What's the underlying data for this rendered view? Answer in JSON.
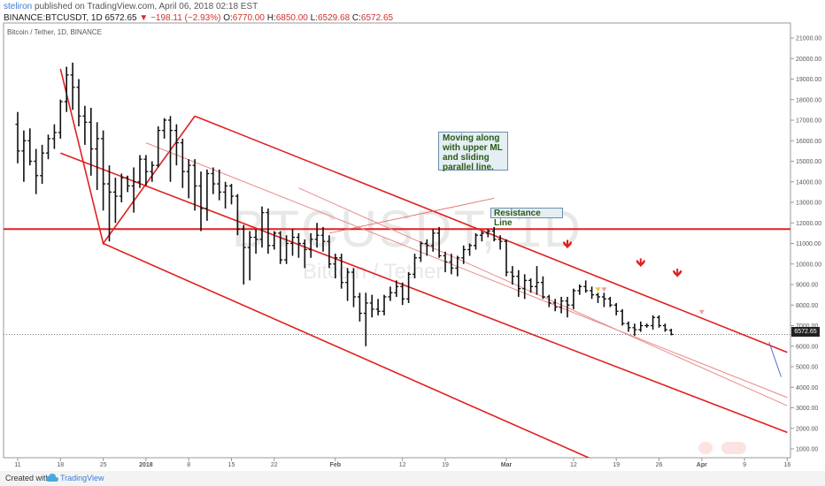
{
  "header": {
    "author": "steliron",
    "published_text": "published on TradingView.com, April 06, 2018 02:18 EST",
    "symbol": "BINANCE:BTCUSDT, 1D",
    "last": "6572.65",
    "change": "−198.11 (−2.93%)",
    "open_label": "O:",
    "open": "6770.00",
    "high_label": "H:",
    "high": "6850.00",
    "low_label": "L:",
    "low": "6529.68",
    "close_label": "C:",
    "close": "6572.65"
  },
  "pane": {
    "title": "Bitcoin / Tether, 1D, BINANCE",
    "watermark_symbol": "BTCUSDT, 1D",
    "watermark_name": "Bitcoin / Tether"
  },
  "annotations": {
    "upper_ml_note": [
      "Moving along",
      "with upper ML",
      "and sliding",
      "parallel line."
    ],
    "resistance_note": "Resistance Line"
  },
  "footer": {
    "created_with": "Created with",
    "brand": "TradingView"
  },
  "chart_data": {
    "type": "bar",
    "price_type": "ohlc",
    "y_axis_position": "right",
    "ylim": [
      500,
      21500
    ],
    "y_ticks": [
      "1000.00",
      "2000.00",
      "3000.00",
      "4000.00",
      "5000.00",
      "6000.00",
      "7000.00",
      "8000.00",
      "9000.00",
      "10000.00",
      "11000.00",
      "12000.00",
      "13000.00",
      "14000.00",
      "15000.00",
      "16000.00",
      "17000.00",
      "18000.00",
      "19000.00",
      "20000.00",
      "21000.00"
    ],
    "x_tick_labels": [
      "11",
      "18",
      "25",
      "2018",
      "8",
      "15",
      "22",
      "Feb",
      "12",
      "19",
      "Mar",
      "12",
      "19",
      "26",
      "Apr",
      "9",
      "16"
    ],
    "x_ticks_day": [
      0,
      7,
      14,
      21,
      28,
      35,
      42,
      52,
      63,
      70,
      80,
      91,
      98,
      105,
      112,
      119,
      126
    ],
    "current_price": "6572.65",
    "series": [
      {
        "values": [
          [
            16800,
            17400,
            14900,
            15500
          ],
          [
            15500,
            16500,
            14000,
            16000
          ],
          [
            16000,
            16600,
            14800,
            15000
          ],
          [
            15000,
            15600,
            13400,
            14300
          ],
          [
            14300,
            15800,
            13900,
            15400
          ],
          [
            15400,
            16300,
            15100,
            16100
          ],
          [
            16100,
            16800,
            15600,
            16400
          ],
          [
            16400,
            18000,
            16100,
            17900
          ],
          [
            17900,
            19600,
            17400,
            19200
          ],
          [
            19200,
            19800,
            17500,
            18600
          ],
          [
            18600,
            19000,
            16700,
            17200
          ],
          [
            17200,
            17700,
            15800,
            16900
          ],
          [
            16900,
            17600,
            14300,
            15600
          ],
          [
            15600,
            16900,
            13600,
            16100
          ],
          [
            16100,
            16500,
            12600,
            13900
          ],
          [
            13900,
            14800,
            11100,
            13500
          ],
          [
            13500,
            14200,
            12000,
            13300
          ],
          [
            13300,
            14400,
            13000,
            14200
          ],
          [
            14200,
            14300,
            13500,
            13800
          ],
          [
            13800,
            14700,
            12500,
            14000
          ],
          [
            14000,
            15300,
            13700,
            15100
          ],
          [
            15100,
            15300,
            13800,
            14500
          ],
          [
            14500,
            15000,
            14000,
            14800
          ],
          [
            14800,
            16700,
            14700,
            16500
          ],
          [
            16500,
            17100,
            16100,
            17000
          ],
          [
            17000,
            17200,
            14000,
            16500
          ],
          [
            16500,
            16800,
            14800,
            15900
          ],
          [
            15900,
            16100,
            13700,
            14500
          ],
          [
            14500,
            15100,
            13200,
            14800
          ],
          [
            14800,
            15100,
            12600,
            13800
          ],
          [
            13800,
            14500,
            11600,
            12700
          ],
          [
            12700,
            14600,
            12100,
            14400
          ],
          [
            14400,
            14700,
            13400,
            13900
          ],
          [
            13900,
            14600,
            13100,
            13500
          ],
          [
            13500,
            14000,
            12700,
            13800
          ],
          [
            13800,
            13900,
            12900,
            13300
          ],
          [
            13300,
            13400,
            11400,
            11700
          ],
          [
            11700,
            11900,
            9000,
            10800
          ],
          [
            10800,
            11600,
            9200,
            11300
          ],
          [
            11300,
            11700,
            10500,
            11200
          ],
          [
            11200,
            12800,
            10800,
            12500
          ],
          [
            12500,
            12700,
            10500,
            10900
          ],
          [
            10900,
            11600,
            10700,
            11500
          ],
          [
            11500,
            11600,
            10000,
            10200
          ],
          [
            10200,
            11400,
            10000,
            11000
          ],
          [
            11000,
            11700,
            10400,
            11300
          ],
          [
            11300,
            11500,
            10300,
            11000
          ],
          [
            11000,
            11200,
            9800,
            10700
          ],
          [
            10700,
            11500,
            10300,
            11200
          ],
          [
            11200,
            12000,
            10800,
            11400
          ],
          [
            11400,
            11800,
            10600,
            11100
          ],
          [
            11100,
            11400,
            9800,
            10000
          ],
          [
            10000,
            10500,
            9300,
            10300
          ],
          [
            10300,
            10500,
            8800,
            9100
          ],
          [
            9100,
            9800,
            8200,
            9600
          ],
          [
            9600,
            9800,
            7900,
            8400
          ],
          [
            8400,
            8600,
            7200,
            7600
          ],
          [
            7600,
            8600,
            6000,
            8100
          ],
          [
            8100,
            8500,
            7400,
            7800
          ],
          [
            7800,
            8300,
            7500,
            7700
          ],
          [
            7700,
            8500,
            7500,
            8400
          ],
          [
            8400,
            8900,
            8200,
            8600
          ],
          [
            8600,
            9200,
            8400,
            8900
          ],
          [
            8900,
            9100,
            8000,
            8300
          ],
          [
            8300,
            9600,
            8100,
            9500
          ],
          [
            9500,
            10500,
            9300,
            10300
          ],
          [
            10300,
            11100,
            10100,
            11000
          ],
          [
            11000,
            11200,
            10400,
            10900
          ],
          [
            10900,
            11700,
            10600,
            11500
          ],
          [
            11500,
            11800,
            10300,
            10400
          ],
          [
            10400,
            10600,
            9600,
            10100
          ],
          [
            10100,
            10500,
            9500,
            9800
          ],
          [
            9800,
            10400,
            9400,
            10300
          ],
          [
            10300,
            10900,
            10000,
            10700
          ],
          [
            10700,
            11000,
            10400,
            10900
          ],
          [
            10900,
            11500,
            10700,
            11400
          ],
          [
            11400,
            11600,
            11100,
            11500
          ],
          [
            11500,
            11700,
            11300,
            11600
          ],
          [
            11600,
            11800,
            11100,
            11200
          ],
          [
            11200,
            11400,
            10700,
            11100
          ],
          [
            11100,
            11200,
            9400,
            9600
          ],
          [
            9600,
            9900,
            9000,
            9400
          ],
          [
            9400,
            9700,
            8400,
            8800
          ],
          [
            8800,
            9500,
            8300,
            9200
          ],
          [
            9200,
            9300,
            8600,
            8900
          ],
          [
            8900,
            9900,
            8500,
            9100
          ],
          [
            9100,
            9400,
            8300,
            8400
          ],
          [
            8400,
            8500,
            7900,
            8100
          ],
          [
            8100,
            8300,
            7700,
            7900
          ],
          [
            7900,
            8400,
            7600,
            8200
          ],
          [
            8200,
            8400,
            7400,
            8000
          ],
          [
            8000,
            8800,
            7800,
            8700
          ],
          [
            8700,
            9000,
            8500,
            8900
          ],
          [
            8900,
            9200,
            8600,
            8700
          ],
          [
            8700,
            8900,
            8300,
            8500
          ],
          [
            8500,
            8600,
            8100,
            8400
          ],
          [
            8400,
            8600,
            7900,
            8300
          ],
          [
            8300,
            8400,
            7900,
            8000
          ],
          [
            8000,
            8100,
            7500,
            7700
          ],
          [
            7700,
            7800,
            7000,
            7100
          ],
          [
            7100,
            7200,
            6700,
            6900
          ],
          [
            6900,
            7100,
            6500,
            6800
          ],
          [
            6800,
            7200,
            6700,
            7000
          ],
          [
            7000,
            7100,
            6900,
            7000
          ],
          [
            7000,
            7500,
            6800,
            7400
          ],
          [
            7400,
            7500,
            6900,
            7000
          ],
          [
            7000,
            7100,
            6700,
            6800
          ],
          [
            6770,
            6850,
            6530,
            6573
          ]
        ]
      }
    ],
    "horizontal_lines": [
      {
        "price": 11700,
        "label": "Resistance Line",
        "color": "#e02020"
      }
    ],
    "trend_lines": [
      {
        "role": "pitchfork_pivots",
        "points": [
          [
            7,
            19500
          ],
          [
            14,
            11000
          ],
          [
            29,
            17200
          ]
        ]
      },
      {
        "role": "upper_median_line",
        "points": [
          [
            29,
            17200
          ],
          [
            126,
            5700
          ]
        ]
      },
      {
        "role": "median_line",
        "points": [
          [
            7,
            15400
          ],
          [
            126,
            1800
          ]
        ]
      },
      {
        "role": "lower_median_line",
        "points": [
          [
            14,
            11000
          ],
          [
            94,
            500
          ]
        ]
      },
      {
        "role": "sliding_parallel",
        "points": [
          [
            21,
            15900
          ],
          [
            126,
            3500
          ]
        ]
      },
      {
        "role": "sliding_parallel",
        "points": [
          [
            46,
            13700
          ],
          [
            126,
            3100
          ]
        ]
      },
      {
        "role": "callout_leader",
        "points": [
          [
            78,
            13200
          ],
          [
            51,
            11500
          ]
        ]
      },
      {
        "role": "projection",
        "points": [
          [
            123,
            6200
          ],
          [
            125,
            4500
          ]
        ]
      }
    ],
    "markers": [
      {
        "day": 90,
        "price": 10700,
        "shape": "arrow-down",
        "color": "#e02020"
      },
      {
        "day": 102,
        "price": 9800,
        "shape": "arrow-down",
        "color": "#e02020"
      },
      {
        "day": 108,
        "price": 9300,
        "shape": "arrow-down",
        "color": "#e02020"
      },
      {
        "day": 95,
        "price": 8600,
        "shape": "triangle-down",
        "color": "#e8c840"
      },
      {
        "day": 96,
        "price": 8600,
        "shape": "triangle-down",
        "color": "#e8a0a0"
      },
      {
        "day": 112,
        "price": 7500,
        "shape": "triangle-down",
        "color": "#e8a0a0"
      }
    ],
    "colors": {
      "bars": "#111111",
      "channel": "#e02020",
      "parallel": "#e88a8a",
      "projection": "#5a6fd0"
    }
  }
}
